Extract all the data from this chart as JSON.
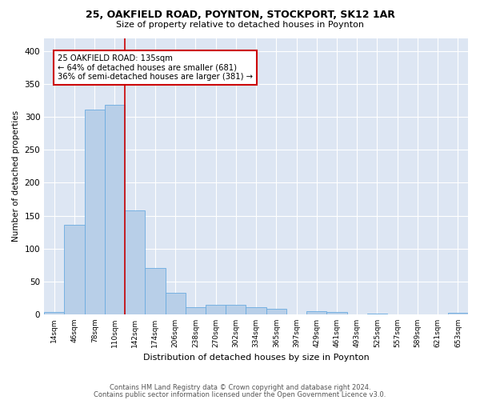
{
  "title_line1": "25, OAKFIELD ROAD, POYNTON, STOCKPORT, SK12 1AR",
  "title_line2": "Size of property relative to detached houses in Poynton",
  "xlabel": "Distribution of detached houses by size in Poynton",
  "ylabel": "Number of detached properties",
  "bin_labels": [
    "14sqm",
    "46sqm",
    "78sqm",
    "110sqm",
    "142sqm",
    "174sqm",
    "206sqm",
    "238sqm",
    "270sqm",
    "302sqm",
    "334sqm",
    "365sqm",
    "397sqm",
    "429sqm",
    "461sqm",
    "493sqm",
    "525sqm",
    "557sqm",
    "589sqm",
    "621sqm",
    "653sqm"
  ],
  "bar_heights": [
    4,
    136,
    311,
    318,
    158,
    70,
    33,
    11,
    14,
    14,
    11,
    8,
    0,
    5,
    3,
    0,
    1,
    0,
    0,
    0,
    2
  ],
  "bar_color": "#b8cfe8",
  "bar_edgecolor": "#6aabe0",
  "vline_x": 3.5,
  "vline_color": "#cc0000",
  "annotation_line1": "25 OAKFIELD ROAD: 135sqm",
  "annotation_line2": "← 64% of detached houses are smaller (681)",
  "annotation_line3": "36% of semi-detached houses are larger (381) →",
  "annotation_box_color": "#ffffff",
  "annotation_box_edgecolor": "#cc0000",
  "ylim": [
    0,
    420
  ],
  "yticks": [
    0,
    50,
    100,
    150,
    200,
    250,
    300,
    350,
    400
  ],
  "background_color": "#dde6f3",
  "grid_color": "#ffffff",
  "footer_line1": "Contains HM Land Registry data © Crown copyright and database right 2024.",
  "footer_line2": "Contains public sector information licensed under the Open Government Licence v3.0."
}
